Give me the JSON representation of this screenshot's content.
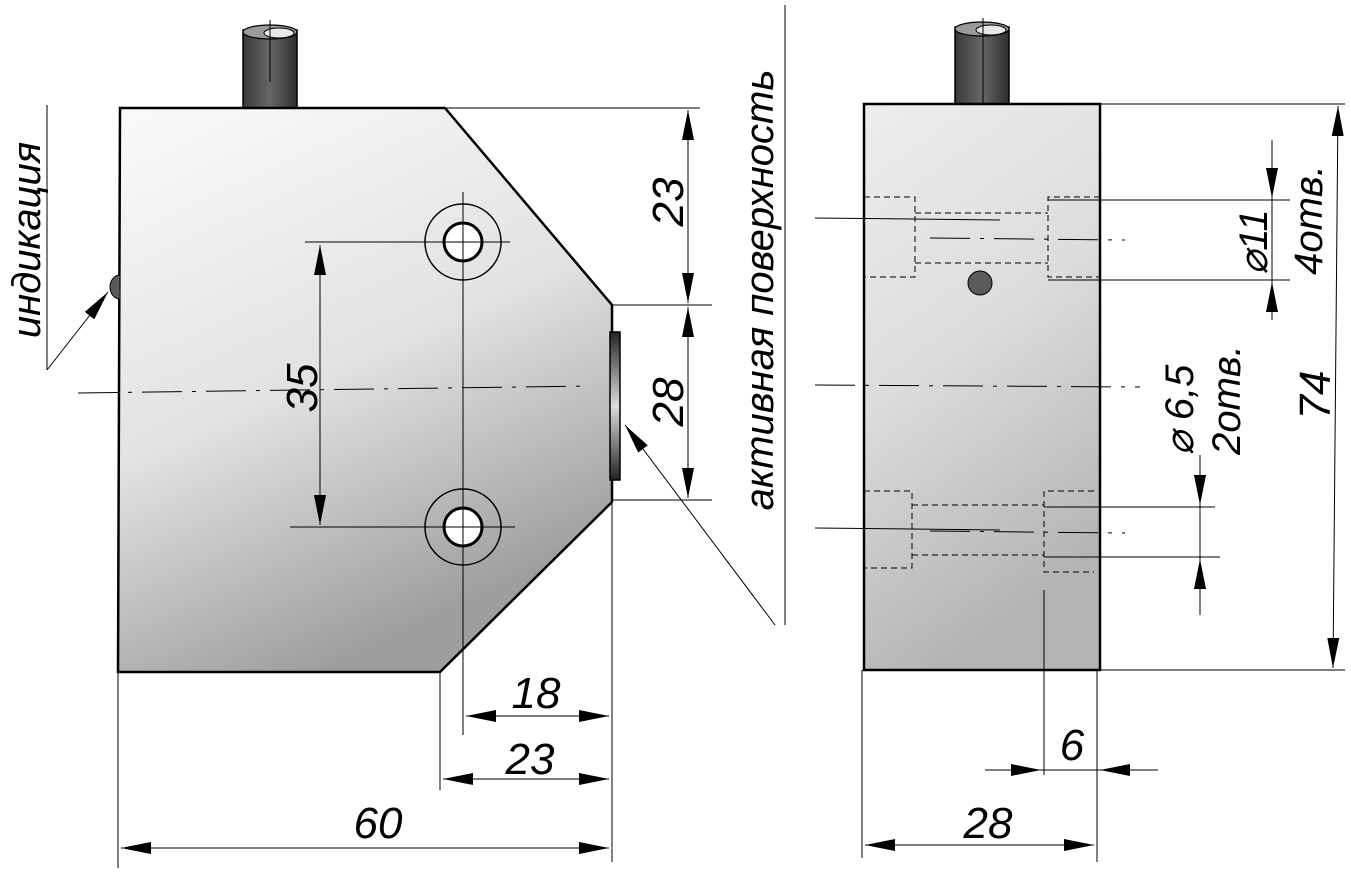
{
  "labels": {
    "indication": "индикация",
    "active_surface": "активная поверхность"
  },
  "side_view": {
    "dim_top_23": "23",
    "dim_35": "35",
    "dim_28": "28",
    "dim_18": "18",
    "dim_bottom_23": "23",
    "dim_60": "60"
  },
  "front_view": {
    "hole_11_diameter": "⌀11",
    "hole_11_count": "4отв.",
    "hole_6_5_diameter": "⌀ 6,5",
    "hole_6_5_count": "2отв.",
    "dim_74": "74",
    "dim_6": "6",
    "dim_28": "28"
  },
  "colors": {
    "body_light": "#f4f4f4",
    "body_dark": "#a9a9a9",
    "cable": "#4a4a4a",
    "led": "#5a5a5a",
    "line": "#000000"
  }
}
